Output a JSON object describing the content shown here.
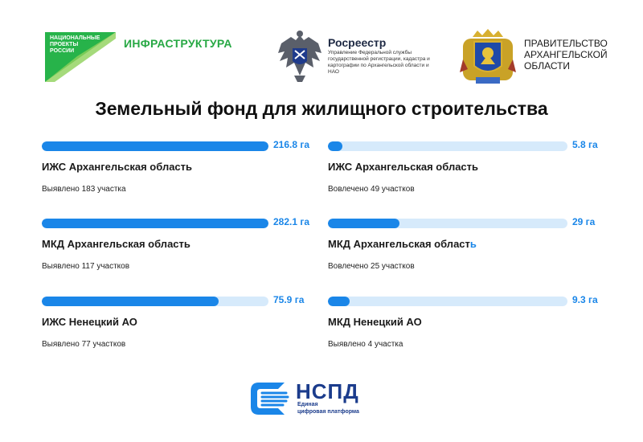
{
  "header": {
    "np_logo_lines": [
      "НАЦИОНАЛЬНЫЕ",
      "ПРОЕКТЫ",
      "РОССИИ"
    ],
    "infra_label": "ИНФРАСТРУКТУРА",
    "rosreestr_title": "Росреестр",
    "rosreestr_sub": "Управление Федеральной службы государственной регистрации, кадастра и картографии по Архангельской области и НАО",
    "gov_line1": "ПРАВИТЕЛЬСТВО",
    "gov_line2": "АРХАНГЕЛЬСКОЙ",
    "gov_line3": "ОБЛАСТИ"
  },
  "title": "Земельный фонд для жилищного строительства",
  "stats": [
    {
      "value": "216.8 га",
      "fill": 1.0,
      "label": "ИЖС Архангельская область",
      "label_tail": "",
      "sub": "Выявлено 183 участка"
    },
    {
      "value": "5.8 га",
      "fill": 0.06,
      "label": "ИЖС Архангельская область",
      "label_tail": "",
      "sub": "Вовлечено 49 участков"
    },
    {
      "value": "282.1 га",
      "fill": 1.0,
      "label": "МКД Архангельская област",
      "label_tail": "ь",
      "sub": "Выявлено 117 участков"
    },
    {
      "value": "29 га",
      "fill": 0.3,
      "label": "МКД Архангельская област",
      "label_tail": "ь",
      "sub": "Вовлечено 25 участков"
    },
    {
      "value": "75.9 га",
      "fill": 0.78,
      "label": "ИЖС Ненецкий АО",
      "label_tail": "",
      "sub": "Выявлено 77 участков"
    },
    {
      "value": "9.3 га",
      "fill": 0.09,
      "label": "МКД Ненецкий АО",
      "label_tail": "",
      "sub": "Выявлено 4 участка"
    }
  ],
  "footer": {
    "nspd_title": "НСПД",
    "nspd_sub1": "Единая",
    "nspd_sub2": "цифровая платформа"
  },
  "colors": {
    "accent": "#1a86e8",
    "track": "#d6eafb",
    "infra_green": "#27a844"
  }
}
